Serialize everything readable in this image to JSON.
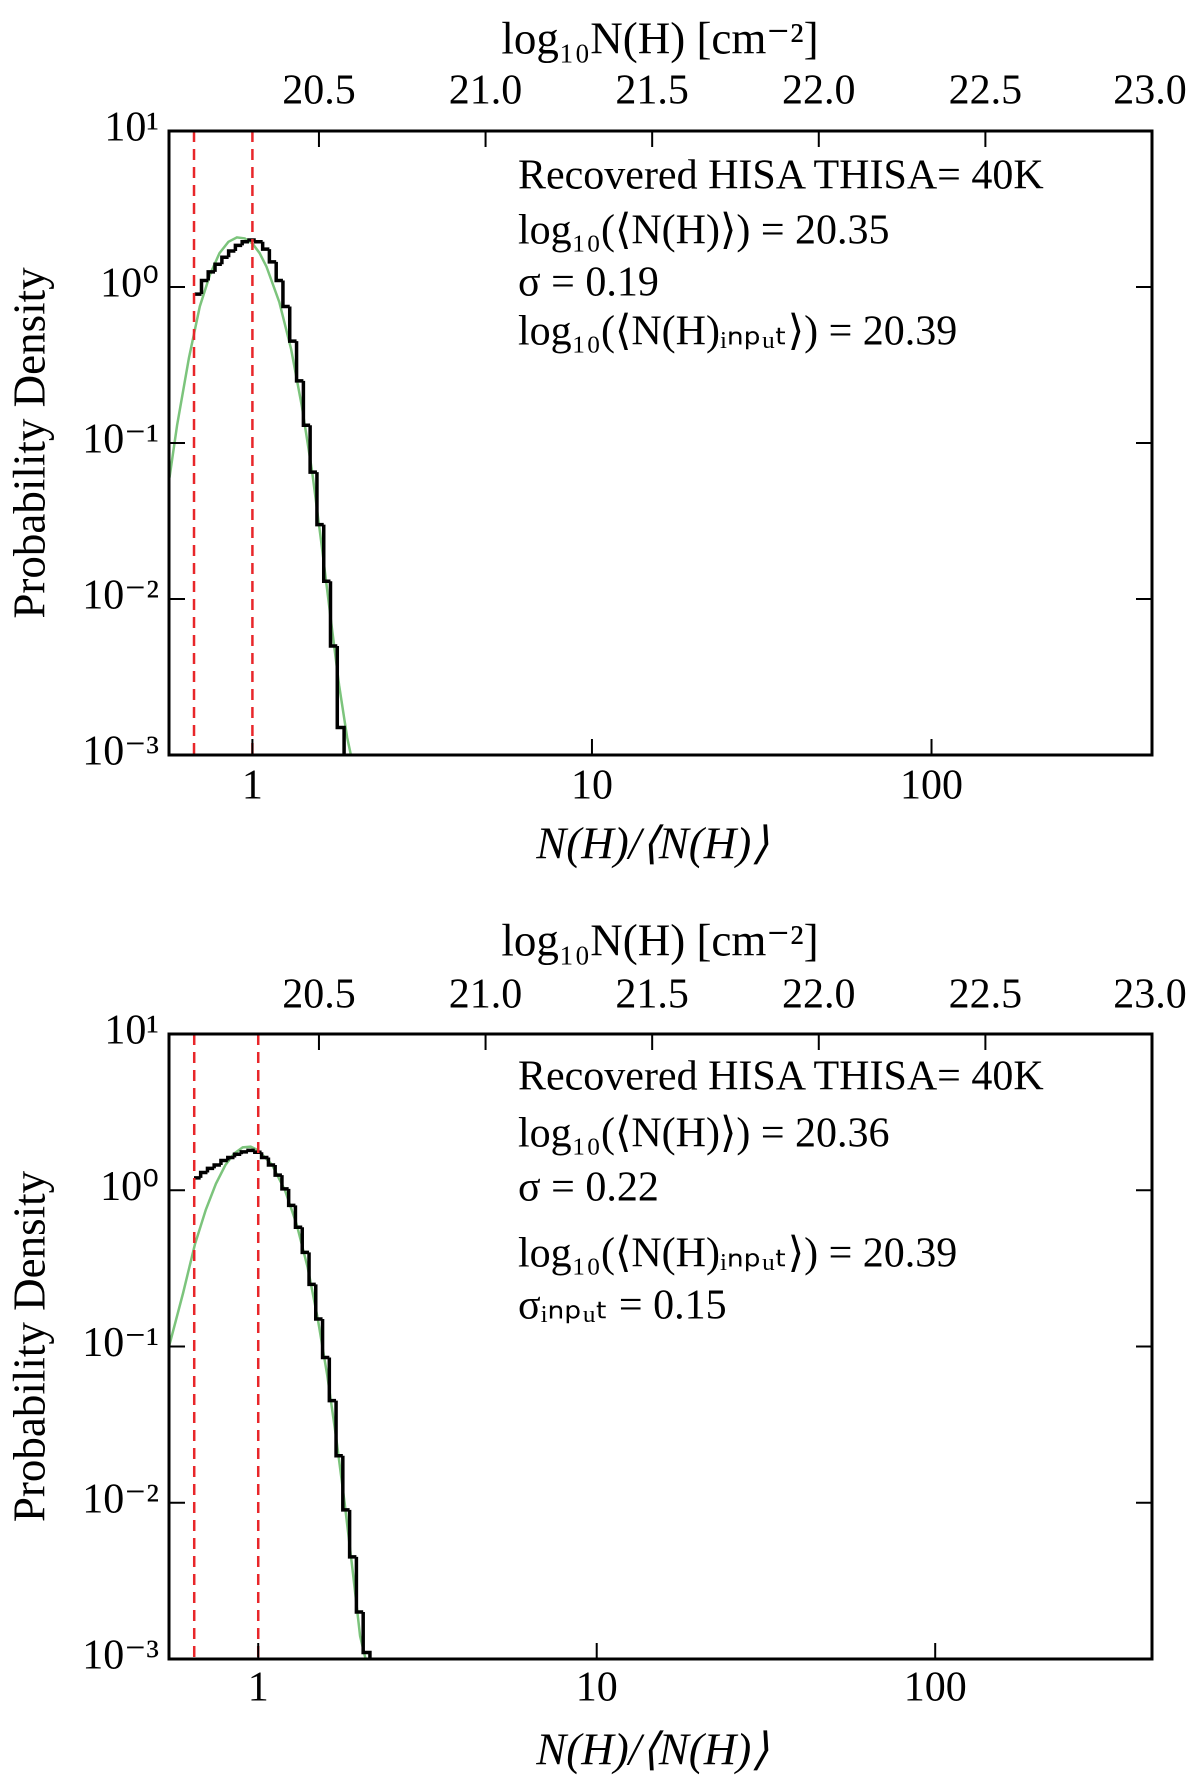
{
  "chart_data": [
    {
      "type": "histogram",
      "x_label": "N(H)/⟨N(H)⟩",
      "x2_label": "log₁₀N(H) [cm⁻²]",
      "y_label": "Probability Density",
      "log_x": true,
      "log_y": true,
      "xlim": [
        0.568,
        446
      ],
      "xticks": [
        1,
        10,
        100
      ],
      "x2lim": [
        20.05,
        23.0
      ],
      "x2ticks": [
        20.5,
        {
          "value": 21,
          "label": "21.0"
        },
        21.5,
        {
          "value": 22,
          "label": "22.0"
        },
        22.5,
        {
          "value": 23,
          "label": "23.0"
        }
      ],
      "ylim": [
        0.001,
        10
      ],
      "yticks": [
        {
          "value": 0.001,
          "label": "10⁻³"
        },
        {
          "value": 0.01,
          "label": "10⁻²"
        },
        {
          "value": 0.1,
          "label": "10⁻¹"
        },
        {
          "value": 1,
          "label": "10⁰"
        },
        {
          "value": 10,
          "label": "10¹"
        }
      ],
      "bins": [
        0.676,
        0.708,
        0.741,
        0.776,
        0.813,
        0.851,
        0.891,
        0.933,
        0.977,
        1.023,
        1.072,
        1.122,
        1.175,
        1.23,
        1.288,
        1.349,
        1.413,
        1.479,
        1.549,
        1.622,
        1.698,
        1.778,
        1.862
      ],
      "values": [
        0.9,
        1.1,
        1.25,
        1.4,
        1.55,
        1.7,
        1.85,
        1.95,
        2.0,
        1.95,
        1.75,
        1.45,
        1.1,
        0.75,
        0.45,
        0.25,
        0.13,
        0.065,
        0.03,
        0.013,
        0.005,
        0.0015
      ],
      "color": "#000000",
      "fit": {
        "color": "#7cc47c",
        "x": [
          0.57,
          0.6,
          0.65,
          0.7,
          0.75,
          0.8,
          0.85,
          0.9,
          0.95,
          1.0,
          1.05,
          1.1,
          1.2,
          1.3,
          1.4,
          1.5,
          1.6,
          1.7,
          1.8,
          1.9,
          1.95
        ],
        "values": [
          0.06,
          0.13,
          0.35,
          0.75,
          1.2,
          1.65,
          1.95,
          2.08,
          2.05,
          1.9,
          1.65,
          1.35,
          0.8,
          0.4,
          0.17,
          0.065,
          0.022,
          0.0075,
          0.0028,
          0.0013,
          0.001
        ]
      },
      "vlines": [
        0.673,
        1.0
      ],
      "vline_color": "#e8262a",
      "annotations": [
        "Recovered HISA THISA= 40K",
        "log₁₀(⟨N(H)⟩) = 20.35",
        "σ = 0.19",
        "log₁₀(⟨N(H)ᵢₙₚᵤₜ⟩) = 20.39"
      ]
    },
    {
      "type": "histogram",
      "x_label": "N(H)/⟨N(H)⟩",
      "x2_label": "log₁₀N(H) [cm⁻²]",
      "y_label": "Probability Density",
      "log_x": true,
      "log_y": true,
      "xlim": [
        0.545,
        437
      ],
      "xticks": [
        1,
        10,
        100
      ],
      "x2lim": [
        20.05,
        23.0
      ],
      "x2ticks": [
        20.5,
        {
          "value": 21,
          "label": "21.0"
        },
        21.5,
        {
          "value": 22,
          "label": "22.0"
        },
        22.5,
        {
          "value": 23,
          "label": "23.0"
        }
      ],
      "ylim": [
        0.001,
        10
      ],
      "yticks": [
        {
          "value": 0.001,
          "label": "10⁻³"
        },
        {
          "value": 0.01,
          "label": "10⁻²"
        },
        {
          "value": 0.1,
          "label": "10⁻¹"
        },
        {
          "value": 1,
          "label": "10⁰"
        },
        {
          "value": 10,
          "label": "10¹"
        }
      ],
      "bins": [
        0.646,
        0.676,
        0.708,
        0.741,
        0.776,
        0.813,
        0.851,
        0.891,
        0.933,
        0.977,
        1.023,
        1.072,
        1.122,
        1.175,
        1.23,
        1.288,
        1.349,
        1.413,
        1.479,
        1.549,
        1.622,
        1.698,
        1.778,
        1.862,
        1.95,
        2.042,
        2.138
      ],
      "values": [
        1.2,
        1.3,
        1.38,
        1.45,
        1.55,
        1.62,
        1.7,
        1.76,
        1.8,
        1.75,
        1.62,
        1.45,
        1.25,
        1.02,
        0.8,
        0.58,
        0.4,
        0.25,
        0.15,
        0.085,
        0.045,
        0.02,
        0.009,
        0.0045,
        0.002,
        0.0011
      ],
      "color": "#000000",
      "fit": {
        "color": "#7cc47c",
        "x": [
          0.545,
          0.6,
          0.65,
          0.7,
          0.75,
          0.8,
          0.85,
          0.9,
          0.95,
          1.0,
          1.1,
          1.2,
          1.3,
          1.4,
          1.5,
          1.6,
          1.7,
          1.8,
          1.9,
          2.0,
          2.1
        ],
        "values": [
          0.1,
          0.22,
          0.45,
          0.75,
          1.1,
          1.45,
          1.72,
          1.88,
          1.9,
          1.8,
          1.45,
          1.0,
          0.6,
          0.32,
          0.15,
          0.065,
          0.026,
          0.01,
          0.0037,
          0.0014,
          0.0009
        ]
      },
      "vlines": [
        0.647,
        1.0
      ],
      "vline_color": "#e8262a",
      "annotations": [
        "Recovered HISA THISA= 40K",
        "log₁₀(⟨N(H)⟩) = 20.36",
        "σ = 0.22",
        "log₁₀(⟨N(H)ᵢₙₚᵤₜ⟩) = 20.39",
        "σᵢₙₚᵤₜ = 0.15"
      ]
    }
  ]
}
